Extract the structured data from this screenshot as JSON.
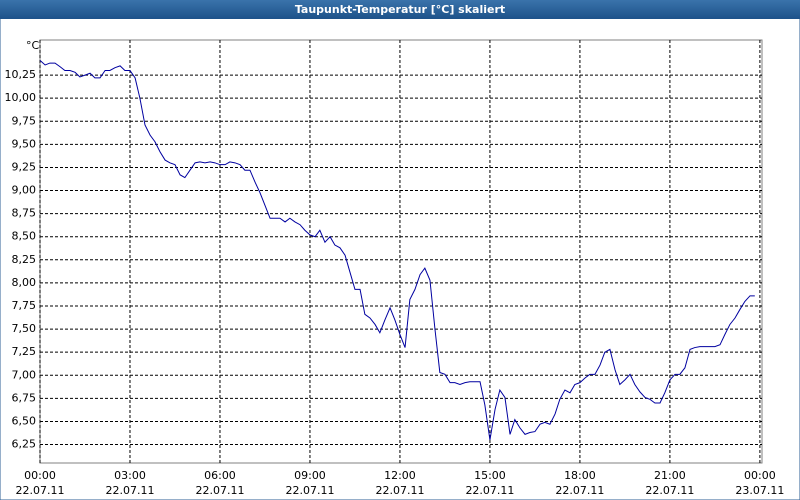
{
  "chart_data": {
    "type": "line",
    "title": "Taupunkt-Temperatur [°C] skaliert",
    "y_unit": "°C",
    "xlim": [
      0,
      24.07
    ],
    "ylim": [
      6.05,
      10.63
    ],
    "grid": true,
    "xticks": [
      {
        "value": 0,
        "label": "00:00"
      },
      {
        "value": 3,
        "label": "03:00"
      },
      {
        "value": 6,
        "label": "06:00"
      },
      {
        "value": 9,
        "label": "09:00"
      },
      {
        "value": 12,
        "label": "12:00"
      },
      {
        "value": 15,
        "label": "15:00"
      },
      {
        "value": 18,
        "label": "18:00"
      },
      {
        "value": 21,
        "label": "21:00"
      },
      {
        "value": 24,
        "label": "00:00"
      }
    ],
    "xtick_dates": [
      "22.07.11",
      "22.07.11",
      "22.07.11",
      "22.07.11",
      "22.07.11",
      "22.07.11",
      "22.07.11",
      "22.07.11",
      "23.07.11"
    ],
    "yticks": [
      {
        "value": 6.25,
        "label": "6,25"
      },
      {
        "value": 6.5,
        "label": "6,50"
      },
      {
        "value": 6.75,
        "label": "6,75"
      },
      {
        "value": 7,
        "label": "7,00"
      },
      {
        "value": 7.25,
        "label": "7,25"
      },
      {
        "value": 7.5,
        "label": "7,50"
      },
      {
        "value": 7.75,
        "label": "7,75"
      },
      {
        "value": 8,
        "label": "8,00"
      },
      {
        "value": 8.25,
        "label": "8,25"
      },
      {
        "value": 8.5,
        "label": "8,50"
      },
      {
        "value": 8.75,
        "label": "8,75"
      },
      {
        "value": 9,
        "label": "9,00"
      },
      {
        "value": 9.25,
        "label": "9,25"
      },
      {
        "value": 9.5,
        "label": "9,50"
      },
      {
        "value": 9.75,
        "label": "9,75"
      },
      {
        "value": 10,
        "label": "10,00"
      },
      {
        "value": 10.25,
        "label": "10,25"
      }
    ],
    "series": [
      {
        "color": "#0000a0",
        "x": [
          0,
          0.17,
          0.33,
          0.5,
          0.67,
          0.83,
          1,
          1.17,
          1.33,
          1.5,
          1.67,
          1.83,
          2,
          2.17,
          2.33,
          2.5,
          2.67,
          2.83,
          3,
          3.17,
          3.33,
          3.5,
          3.67,
          3.83,
          4,
          4.17,
          4.33,
          4.5,
          4.67,
          4.83,
          5,
          5.17,
          5.33,
          5.5,
          5.67,
          5.83,
          6,
          6.17,
          6.33,
          6.5,
          6.67,
          6.83,
          7,
          7.17,
          7.33,
          7.5,
          7.67,
          7.83,
          8,
          8.17,
          8.33,
          8.5,
          8.67,
          8.83,
          9,
          9.17,
          9.33,
          9.5,
          9.67,
          9.83,
          10,
          10.17,
          10.33,
          10.5,
          10.67,
          10.83,
          11,
          11.17,
          11.33,
          11.5,
          11.67,
          11.83,
          12,
          12.17,
          12.33,
          12.5,
          12.67,
          12.83,
          13,
          13.17,
          13.33,
          13.5,
          13.67,
          13.83,
          14,
          14.17,
          14.33,
          14.5,
          14.67,
          14.83,
          15,
          15.17,
          15.33,
          15.5,
          15.67,
          15.83,
          16,
          16.17,
          16.33,
          16.5,
          16.67,
          16.83,
          17,
          17.17,
          17.33,
          17.5,
          17.67,
          17.83,
          18,
          18.17,
          18.33,
          18.5,
          18.67,
          18.83,
          19,
          19.17,
          19.33,
          19.5,
          19.67,
          19.83,
          20,
          20.17,
          20.33,
          20.5,
          20.67,
          20.83,
          21,
          21.17,
          21.33,
          21.5,
          21.67,
          21.83,
          22,
          22.17,
          22.33,
          22.5,
          22.67,
          22.83,
          23,
          23.17,
          23.33,
          23.5,
          23.67,
          23.83
        ],
        "values": [
          10.41,
          10.36,
          10.38,
          10.38,
          10.34,
          10.3,
          10.3,
          10.28,
          10.23,
          10.25,
          10.27,
          10.22,
          10.22,
          10.3,
          10.3,
          10.33,
          10.35,
          10.3,
          10.3,
          10.22,
          10.0,
          9.71,
          9.6,
          9.53,
          9.42,
          9.33,
          9.3,
          9.28,
          9.17,
          9.14,
          9.22,
          9.3,
          9.31,
          9.3,
          9.31,
          9.3,
          9.28,
          9.28,
          9.31,
          9.3,
          9.28,
          9.22,
          9.22,
          9.09,
          8.98,
          8.84,
          8.7,
          8.7,
          8.7,
          8.66,
          8.7,
          8.66,
          8.63,
          8.57,
          8.52,
          8.5,
          8.57,
          8.44,
          8.5,
          8.41,
          8.38,
          8.3,
          8.12,
          7.93,
          7.93,
          7.66,
          7.62,
          7.55,
          7.46,
          7.6,
          7.73,
          7.6,
          7.44,
          7.3,
          7.82,
          7.93,
          8.09,
          8.16,
          8.03,
          7.49,
          7.03,
          7.01,
          6.92,
          6.92,
          6.9,
          6.92,
          6.93,
          6.93,
          6.93,
          6.68,
          6.3,
          6.63,
          6.84,
          6.76,
          6.36,
          6.52,
          6.43,
          6.36,
          6.38,
          6.39,
          6.47,
          6.49,
          6.47,
          6.58,
          6.74,
          6.84,
          6.81,
          6.9,
          6.92,
          6.97,
          7.01,
          7.01,
          7.11,
          7.25,
          7.28,
          7.06,
          6.9,
          6.95,
          7.01,
          6.9,
          6.82,
          6.76,
          6.74,
          6.7,
          6.7,
          6.81,
          6.95,
          7.01,
          7.01,
          7.08,
          7.28,
          7.3,
          7.31,
          7.31,
          7.31,
          7.31,
          7.33,
          7.44,
          7.55,
          7.62,
          7.71,
          7.8,
          7.86,
          7.86
        ]
      }
    ]
  }
}
